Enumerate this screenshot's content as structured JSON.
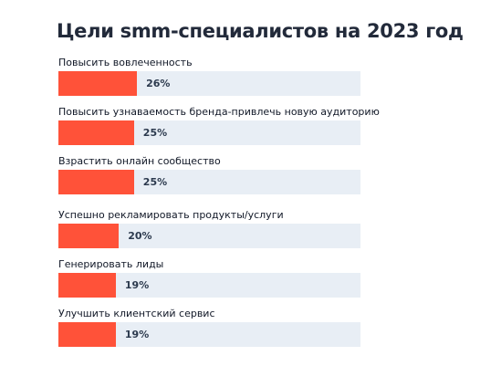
{
  "chart_data": {
    "type": "bar",
    "orientation": "horizontal",
    "title": "Цели smm-специалистов на 2023 год",
    "categories": [
      "Повысить вовлеченность",
      "Повысить узнаваемость бренда-привлечь новую аудиторию",
      "Взрастить онлайн сообщество",
      "Успешно рекламировать продукты/услуги",
      "Генерировать лиды",
      "Улучшить клиентский сервис"
    ],
    "values": [
      26,
      25,
      25,
      20,
      19,
      19
    ],
    "value_labels": [
      "26%",
      "25%",
      "25%",
      "20%",
      "19%",
      "19%"
    ],
    "unit": "%",
    "xlim": [
      0,
      100
    ],
    "grid": false,
    "legend": "none",
    "colors": {
      "bar": "#ff5239",
      "track": "#e8eef5",
      "title": "#222a3a",
      "label": "#111827",
      "value": "#2c3a4e"
    }
  }
}
